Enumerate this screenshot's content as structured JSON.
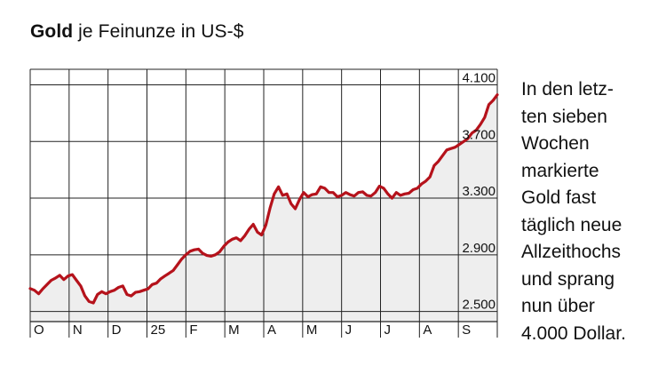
{
  "header": {
    "title_bold": "Gold",
    "title_rest": " je Feinunze in US-$"
  },
  "annotation": "In den letz-\nten sieben\nWochen\nmarkierte\nGold fast\ntäglich neue\nAllzeithochs\nund sprang\nnun über\n4.000 Dollar.",
  "colors": {
    "line": "#b5121b",
    "area": "#eeeeee",
    "grid": "#222222"
  },
  "chart_data": {
    "type": "area",
    "ylim": [
      2450,
      4200
    ],
    "y_ticks": [
      {
        "value": 2500,
        "label": "2.500"
      },
      {
        "value": 2900,
        "label": "2.900"
      },
      {
        "value": 3300,
        "label": "3.300"
      },
      {
        "value": 3700,
        "label": "3.700"
      },
      {
        "value": 4100,
        "label": "4.100"
      }
    ],
    "x_ticks": [
      "O",
      "N",
      "D",
      "25",
      "F",
      "M",
      "A",
      "M",
      "J",
      "J",
      "A",
      "S"
    ],
    "grid": true,
    "series": [
      {
        "values": [
          2662,
          2650,
          2625,
          2660,
          2690,
          2720,
          2735,
          2755,
          2725,
          2750,
          2760,
          2720,
          2680,
          2610,
          2570,
          2560,
          2620,
          2640,
          2625,
          2640,
          2650,
          2670,
          2680,
          2620,
          2610,
          2635,
          2640,
          2650,
          2660,
          2690,
          2700,
          2730,
          2750,
          2770,
          2790,
          2830,
          2870,
          2900,
          2925,
          2935,
          2940,
          2910,
          2895,
          2890,
          2900,
          2920,
          2960,
          2990,
          3010,
          3020,
          3000,
          3035,
          3080,
          3115,
          3060,
          3040,
          3110,
          3230,
          3330,
          3380,
          3320,
          3330,
          3260,
          3225,
          3290,
          3340,
          3310,
          3325,
          3330,
          3380,
          3370,
          3340,
          3340,
          3310,
          3320,
          3340,
          3325,
          3315,
          3340,
          3345,
          3320,
          3315,
          3340,
          3385,
          3370,
          3330,
          3300,
          3340,
          3320,
          3330,
          3335,
          3360,
          3370,
          3400,
          3420,
          3450,
          3530,
          3560,
          3600,
          3640,
          3650,
          3660,
          3680,
          3700,
          3720,
          3760,
          3780,
          3820,
          3870,
          3960,
          3990,
          4030
        ]
      }
    ]
  }
}
